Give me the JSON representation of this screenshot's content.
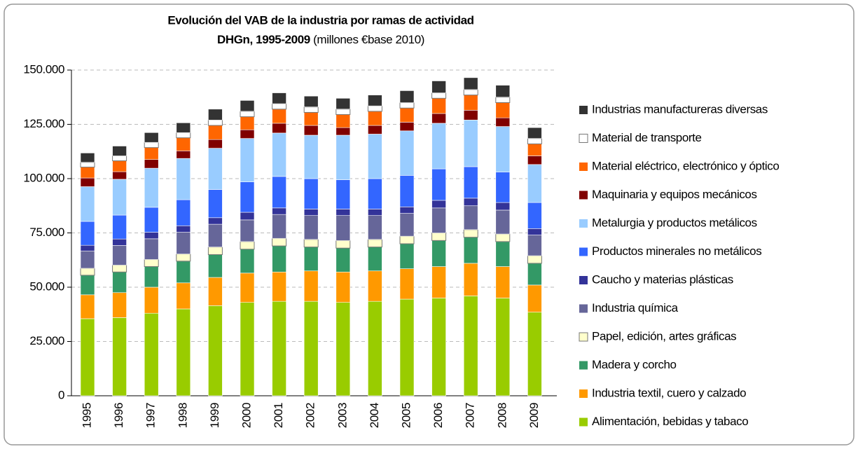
{
  "chart_data": {
    "type": "stacked_bar",
    "title": "Evolución del VAB de la industria por ramas de actividad",
    "subtitle": "DHGn, 1995-2009",
    "unit_note": "(millones €base 2010)",
    "categories": [
      "1995",
      "1996",
      "1997",
      "1998",
      "1999",
      "2000",
      "2001",
      "2002",
      "2003",
      "2004",
      "2005",
      "2006",
      "2007",
      "2008",
      "2009"
    ],
    "ylim": [
      0,
      150000
    ],
    "yticks": [
      0,
      {
        "value": 25000,
        "label": "25.000"
      },
      {
        "value": 50000,
        "label": "50.000"
      },
      {
        "value": 75000,
        "label": "75.000"
      },
      {
        "value": 100000,
        "label": "100.000"
      },
      {
        "value": 125000,
        "label": "125.000"
      },
      {
        "value": 150000,
        "label": "150.000"
      }
    ],
    "grid": true,
    "legend": "right",
    "series": [
      {
        "name": "Alimentación, bebidas y tabaco",
        "color": "#99cc00",
        "values": [
          35500,
          36000,
          38000,
          40000,
          41500,
          43000,
          43500,
          43500,
          43000,
          43500,
          44500,
          45000,
          46000,
          45000,
          38500
        ]
      },
      {
        "name": "Industria textil, cuero y calzado",
        "color": "#ff9900",
        "values": [
          11000,
          11500,
          12000,
          12000,
          13000,
          13500,
          13500,
          14000,
          14000,
          14000,
          14000,
          14500,
          15000,
          14500,
          12500
        ]
      },
      {
        "name": "Madera y corcho",
        "color": "#339966",
        "values": [
          9000,
          9500,
          9500,
          10000,
          10500,
          11000,
          12000,
          11000,
          11000,
          11000,
          11500,
          12000,
          12000,
          11500,
          10000
        ]
      },
      {
        "name": "Papel, edición, artes gráficas",
        "color": "#ffffcc",
        "values": [
          3200,
          3200,
          3300,
          3300,
          3500,
          3500,
          3500,
          3500,
          3500,
          3500,
          3500,
          3500,
          3500,
          3500,
          3500
        ]
      },
      {
        "name": "Industria química",
        "color": "#666699",
        "values": [
          8000,
          9000,
          9500,
          10000,
          10500,
          10000,
          11000,
          11000,
          11500,
          11000,
          10500,
          11500,
          11000,
          11000,
          9500
        ]
      },
      {
        "name": "Caucho y materias plásticas",
        "color": "#333399",
        "values": [
          2600,
          3000,
          3000,
          3000,
          3000,
          3500,
          3000,
          3000,
          3000,
          3000,
          3000,
          3500,
          3500,
          3500,
          3000
        ]
      },
      {
        "name": "Productos minerales no metálicos",
        "color": "#3366ff",
        "values": [
          11000,
          11000,
          11500,
          12000,
          13000,
          14000,
          14500,
          14000,
          13500,
          14000,
          14500,
          14500,
          14500,
          14000,
          12000
        ]
      },
      {
        "name": "Metalurgia y productos metálicos",
        "color": "#99ccff",
        "values": [
          16000,
          16500,
          18000,
          19000,
          19000,
          20000,
          20000,
          20000,
          20500,
          20500,
          20500,
          21000,
          21500,
          21000,
          17500
        ]
      },
      {
        "name": "Maquinaria y equipos mecánicos",
        "color": "#800000",
        "values": [
          4000,
          3500,
          4000,
          3500,
          4000,
          4000,
          4500,
          4500,
          3500,
          4000,
          4000,
          4500,
          4500,
          4000,
          4000
        ]
      },
      {
        "name": "Material eléctrico, electrónico y óptico",
        "color": "#ff6600",
        "values": [
          5000,
          5000,
          5500,
          6000,
          6500,
          6000,
          6500,
          6000,
          6000,
          6500,
          6500,
          7000,
          7000,
          7000,
          5500
        ]
      },
      {
        "name": "Material de transporte",
        "color": "#ffffff",
        "values": [
          2200,
          2300,
          2400,
          2400,
          2500,
          2500,
          2500,
          2500,
          2500,
          2500,
          2500,
          2500,
          2500,
          2500,
          2500
        ]
      },
      {
        "name": "Industrias manufactureras diversas",
        "color": "#333333",
        "values": [
          4300,
          4500,
          4500,
          4500,
          5000,
          5000,
          5000,
          5000,
          5000,
          5000,
          5500,
          5500,
          5500,
          5500,
          5000
        ]
      }
    ]
  }
}
